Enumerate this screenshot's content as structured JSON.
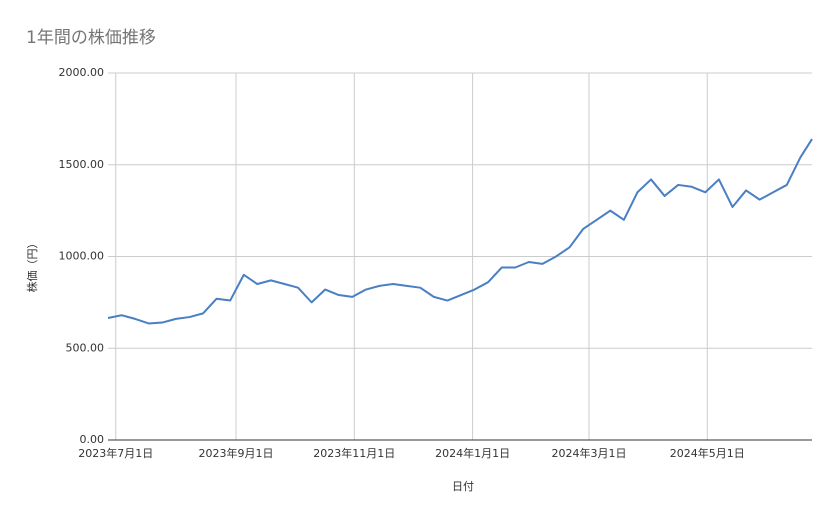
{
  "chart_data": {
    "type": "line",
    "title": "1年間の株価推移",
    "x_label": "日付",
    "y_label": "株価（円）",
    "x": [
      "2023-06-27",
      "2023-07-04",
      "2023-07-11",
      "2023-07-18",
      "2023-07-25",
      "2023-08-01",
      "2023-08-08",
      "2023-08-15",
      "2023-08-22",
      "2023-08-29",
      "2023-09-05",
      "2023-09-12",
      "2023-09-19",
      "2023-09-26",
      "2023-10-03",
      "2023-10-10",
      "2023-10-17",
      "2023-10-24",
      "2023-10-31",
      "2023-11-07",
      "2023-11-14",
      "2023-11-21",
      "2023-11-28",
      "2023-12-05",
      "2023-12-12",
      "2023-12-19",
      "2023-12-26",
      "2024-01-02",
      "2024-01-09",
      "2024-01-16",
      "2024-01-23",
      "2024-01-30",
      "2024-02-06",
      "2024-02-13",
      "2024-02-20",
      "2024-02-27",
      "2024-03-05",
      "2024-03-12",
      "2024-03-19",
      "2024-03-26",
      "2024-04-02",
      "2024-04-09",
      "2024-04-16",
      "2024-04-23",
      "2024-04-30",
      "2024-05-07",
      "2024-05-14",
      "2024-05-21",
      "2024-05-28",
      "2024-06-04",
      "2024-06-11",
      "2024-06-18",
      "2024-06-24"
    ],
    "series": [
      {
        "name": "株価",
        "color": "#4a7fc4",
        "values": [
          665,
          680,
          660,
          635,
          640,
          660,
          670,
          690,
          770,
          760,
          900,
          850,
          870,
          850,
          830,
          750,
          820,
          790,
          780,
          820,
          840,
          850,
          840,
          830,
          780,
          760,
          790,
          820,
          860,
          940,
          940,
          970,
          960,
          1000,
          1050,
          1150,
          1200,
          1250,
          1200,
          1350,
          1420,
          1330,
          1390,
          1380,
          1350,
          1420,
          1270,
          1360,
          1310,
          1350,
          1390,
          1540,
          1640
        ]
      }
    ],
    "xlim": [
      "2023-06-27",
      "2024-06-24"
    ],
    "xticks": [
      {
        "value": "2023-07-01",
        "label": "2023年7月1日"
      },
      {
        "value": "2023-09-01",
        "label": "2023年9月1日"
      },
      {
        "value": "2023-11-01",
        "label": "2023年11月1日"
      },
      {
        "value": "2024-01-01",
        "label": "2024年1月1日"
      },
      {
        "value": "2024-03-01",
        "label": "2024年3月1日"
      },
      {
        "value": "2024-05-01",
        "label": "2024年5月1日"
      }
    ],
    "ylim": [
      0,
      2000
    ],
    "yticks": [
      {
        "value": 0,
        "label": "0.00"
      },
      {
        "value": 500,
        "label": "500.00"
      },
      {
        "value": 1000,
        "label": "1000.00"
      },
      {
        "value": 1500,
        "label": "1500.00"
      },
      {
        "value": 2000,
        "label": "2000.00"
      }
    ],
    "grid": true
  }
}
